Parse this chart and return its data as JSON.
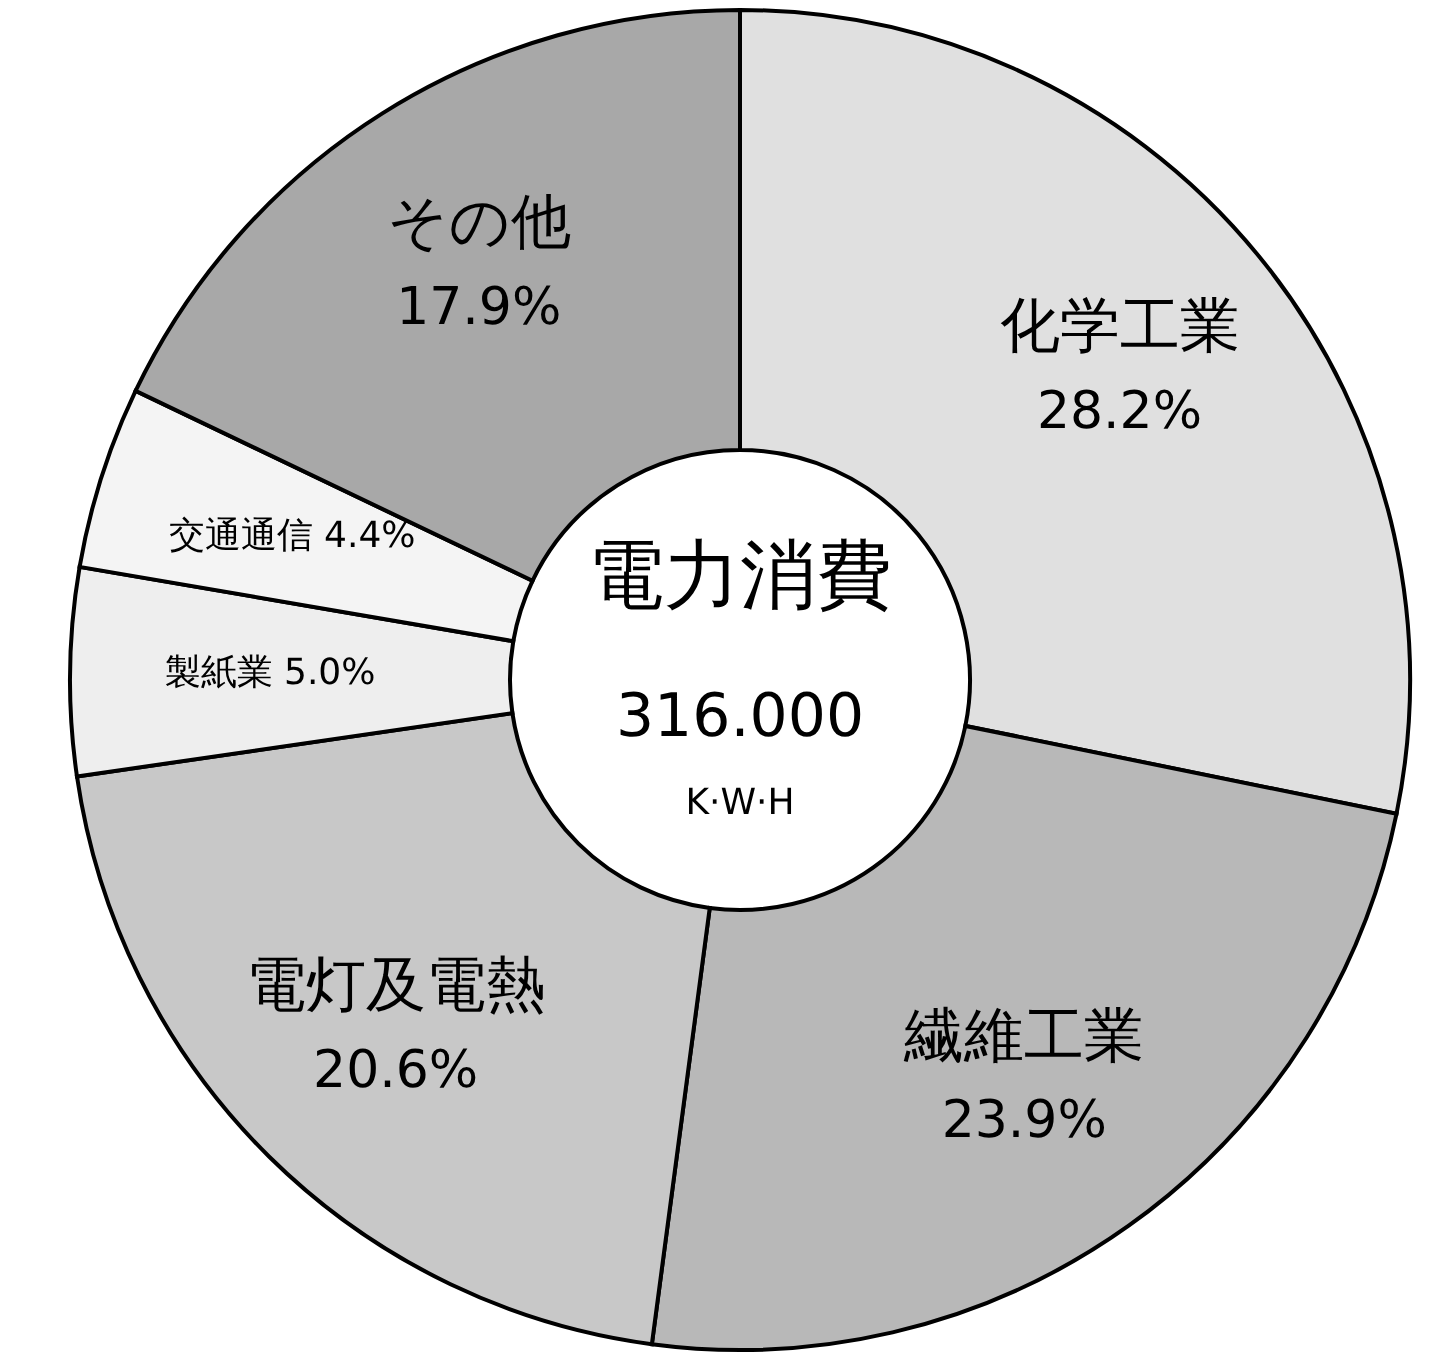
{
  "chart_data": {
    "type": "donut",
    "title": "電力消費",
    "annotations": [
      "316.000",
      "K·W·H"
    ],
    "categories": [
      "化学工業",
      "繊維工業",
      "電灯及電熱",
      "製紙業",
      "交通通信",
      "その他"
    ],
    "values": [
      28.2,
      23.9,
      20.6,
      5.0,
      4.4,
      17.9
    ],
    "value_labels": [
      "28.2%",
      "23.9%",
      "20.6%",
      "5.0%",
      "4.4%",
      "17.9%"
    ],
    "colors": [
      "#e0e0e0",
      "#b8b8b8",
      "#c8c8c8",
      "#eeeeee",
      "#f4f4f4",
      "#a8a8a8"
    ]
  }
}
